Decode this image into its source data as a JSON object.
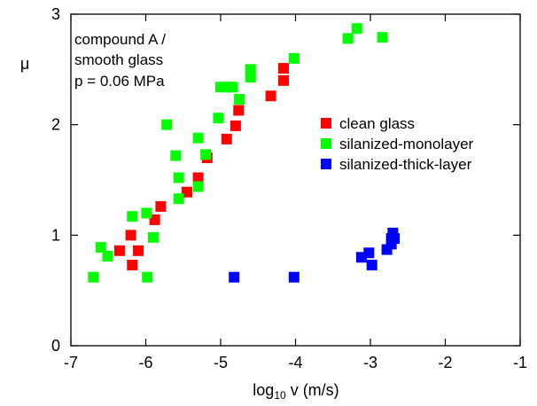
{
  "chart_data": {
    "type": "scatter",
    "title": "",
    "xlabel": {
      "prefix": "log",
      "subscript": "10",
      "suffix": " v  (m/s)"
    },
    "ylabel": "μ",
    "xlim": [
      -7,
      -1
    ],
    "ylim": [
      0,
      3
    ],
    "xticks": [
      "-7",
      "-6",
      "-5",
      "-4",
      "-3",
      "-2",
      "-1"
    ],
    "yticks": [
      "0",
      "1",
      "2",
      "3"
    ],
    "grid": false,
    "legend_position": "right",
    "annotation": [
      "compound A /",
      "smooth glass",
      "p = 0.06 MPa"
    ],
    "series": [
      {
        "name": "clean glass",
        "color": "#ff0000",
        "points": [
          [
            -6.35,
            0.86
          ],
          [
            -6.2,
            1.0
          ],
          [
            -6.18,
            0.73
          ],
          [
            -6.1,
            0.86
          ],
          [
            -5.88,
            1.14
          ],
          [
            -5.8,
            1.26
          ],
          [
            -5.45,
            1.39
          ],
          [
            -5.3,
            1.52
          ],
          [
            -5.18,
            1.7
          ],
          [
            -4.92,
            1.87
          ],
          [
            -4.8,
            1.99
          ],
          [
            -4.76,
            2.13
          ],
          [
            -4.33,
            2.26
          ],
          [
            -4.16,
            2.4
          ],
          [
            -4.16,
            2.51
          ]
        ]
      },
      {
        "name": "silanized-monolayer",
        "color": "#00ff00",
        "points": [
          [
            -6.7,
            0.62
          ],
          [
            -6.6,
            0.89
          ],
          [
            -6.51,
            0.81
          ],
          [
            -5.98,
            0.62
          ],
          [
            -6.18,
            1.17
          ],
          [
            -5.99,
            1.2
          ],
          [
            -5.9,
            0.98
          ],
          [
            -5.72,
            2.0
          ],
          [
            -5.6,
            1.72
          ],
          [
            -5.56,
            1.33
          ],
          [
            -5.56,
            1.52
          ],
          [
            -5.3,
            1.44
          ],
          [
            -5.3,
            1.88
          ],
          [
            -5.2,
            1.73
          ],
          [
            -5.03,
            2.06
          ],
          [
            -5.0,
            2.34
          ],
          [
            -4.9,
            2.34
          ],
          [
            -4.84,
            2.34
          ],
          [
            -4.75,
            2.23
          ],
          [
            -4.6,
            2.5
          ],
          [
            -4.6,
            2.43
          ],
          [
            -4.02,
            2.6
          ],
          [
            -3.3,
            2.78
          ],
          [
            -3.18,
            2.87
          ],
          [
            -2.84,
            2.79
          ]
        ]
      },
      {
        "name": "silanized-thick-layer",
        "color": "#0000ff",
        "points": [
          [
            -4.82,
            0.62
          ],
          [
            -4.02,
            0.62
          ],
          [
            -3.12,
            0.8
          ],
          [
            -3.02,
            0.84
          ],
          [
            -2.98,
            0.73
          ],
          [
            -2.78,
            0.87
          ],
          [
            -2.72,
            0.92
          ],
          [
            -2.72,
            0.97
          ],
          [
            -2.7,
            1.02
          ],
          [
            -2.68,
            0.97
          ]
        ]
      }
    ]
  }
}
